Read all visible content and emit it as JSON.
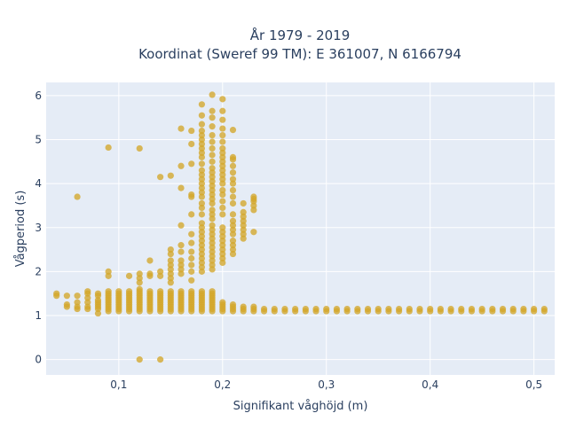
{
  "chart_data": {
    "type": "scatter",
    "title_line1": "År 1979 - 2019",
    "title_line2": "Koordinat (Sweref 99 TM): E 361007, N 6166794",
    "xlabel": "Signifikant våghöjd (m)",
    "ylabel": "Vågperiod (s)",
    "xlim": [
      0.03,
      0.52
    ],
    "ylim": [
      -0.35,
      6.3
    ],
    "x_ticks": [
      0.1,
      0.2,
      0.3,
      0.4,
      0.5
    ],
    "x_tick_labels": [
      "0,1",
      "0,2",
      "0,3",
      "0,4",
      "0,5"
    ],
    "y_ticks": [
      0,
      1,
      2,
      3,
      4,
      5,
      6
    ],
    "y_tick_labels": [
      "0",
      "1",
      "2",
      "3",
      "4",
      "5",
      "6"
    ],
    "grid": true,
    "legend": "none",
    "colors": {
      "plot_bg": "#e5ecf6",
      "grid": "#ffffff",
      "marker": "#d4a62a",
      "text": "#2a3f5f"
    },
    "points": [
      [
        0.04,
        1.45
      ],
      [
        0.04,
        1.5
      ],
      [
        0.05,
        1.2
      ],
      [
        0.05,
        1.25
      ],
      [
        0.05,
        1.45
      ],
      [
        0.06,
        1.15
      ],
      [
        0.06,
        1.2
      ],
      [
        0.06,
        1.3
      ],
      [
        0.06,
        1.45
      ],
      [
        0.06,
        3.7
      ],
      [
        0.07,
        1.15
      ],
      [
        0.07,
        1.2
      ],
      [
        0.07,
        1.3
      ],
      [
        0.07,
        1.4
      ],
      [
        0.07,
        1.5
      ],
      [
        0.07,
        1.55
      ],
      [
        0.08,
        1.05
      ],
      [
        0.08,
        1.15
      ],
      [
        0.08,
        1.2
      ],
      [
        0.08,
        1.25
      ],
      [
        0.08,
        1.3
      ],
      [
        0.08,
        1.35
      ],
      [
        0.08,
        1.45
      ],
      [
        0.08,
        1.5
      ],
      [
        0.09,
        1.1
      ],
      [
        0.09,
        1.15
      ],
      [
        0.09,
        1.2
      ],
      [
        0.09,
        1.25
      ],
      [
        0.09,
        1.3
      ],
      [
        0.09,
        1.35
      ],
      [
        0.09,
        1.4
      ],
      [
        0.09,
        1.45
      ],
      [
        0.09,
        1.5
      ],
      [
        0.09,
        1.55
      ],
      [
        0.09,
        1.9
      ],
      [
        0.09,
        2.0
      ],
      [
        0.09,
        4.82
      ],
      [
        0.1,
        1.1
      ],
      [
        0.1,
        1.15
      ],
      [
        0.1,
        1.2
      ],
      [
        0.1,
        1.25
      ],
      [
        0.1,
        1.3
      ],
      [
        0.1,
        1.35
      ],
      [
        0.1,
        1.4
      ],
      [
        0.1,
        1.45
      ],
      [
        0.1,
        1.5
      ],
      [
        0.1,
        1.55
      ],
      [
        0.11,
        1.1
      ],
      [
        0.11,
        1.15
      ],
      [
        0.11,
        1.2
      ],
      [
        0.11,
        1.25
      ],
      [
        0.11,
        1.3
      ],
      [
        0.11,
        1.35
      ],
      [
        0.11,
        1.4
      ],
      [
        0.11,
        1.45
      ],
      [
        0.11,
        1.5
      ],
      [
        0.11,
        1.55
      ],
      [
        0.11,
        1.9
      ],
      [
        0.12,
        0.0
      ],
      [
        0.12,
        1.1
      ],
      [
        0.12,
        1.15
      ],
      [
        0.12,
        1.2
      ],
      [
        0.12,
        1.25
      ],
      [
        0.12,
        1.3
      ],
      [
        0.12,
        1.35
      ],
      [
        0.12,
        1.4
      ],
      [
        0.12,
        1.45
      ],
      [
        0.12,
        1.5
      ],
      [
        0.12,
        1.55
      ],
      [
        0.12,
        1.6
      ],
      [
        0.12,
        1.75
      ],
      [
        0.12,
        1.85
      ],
      [
        0.12,
        1.95
      ],
      [
        0.12,
        4.8
      ],
      [
        0.13,
        1.1
      ],
      [
        0.13,
        1.15
      ],
      [
        0.13,
        1.2
      ],
      [
        0.13,
        1.25
      ],
      [
        0.13,
        1.3
      ],
      [
        0.13,
        1.35
      ],
      [
        0.13,
        1.4
      ],
      [
        0.13,
        1.45
      ],
      [
        0.13,
        1.5
      ],
      [
        0.13,
        1.55
      ],
      [
        0.13,
        1.9
      ],
      [
        0.13,
        1.95
      ],
      [
        0.13,
        2.25
      ],
      [
        0.14,
        0.0
      ],
      [
        0.14,
        1.1
      ],
      [
        0.14,
        1.15
      ],
      [
        0.14,
        1.2
      ],
      [
        0.14,
        1.25
      ],
      [
        0.14,
        1.3
      ],
      [
        0.14,
        1.35
      ],
      [
        0.14,
        1.4
      ],
      [
        0.14,
        1.45
      ],
      [
        0.14,
        1.5
      ],
      [
        0.14,
        1.55
      ],
      [
        0.14,
        1.9
      ],
      [
        0.14,
        2.0
      ],
      [
        0.14,
        4.15
      ],
      [
        0.15,
        1.1
      ],
      [
        0.15,
        1.15
      ],
      [
        0.15,
        1.2
      ],
      [
        0.15,
        1.25
      ],
      [
        0.15,
        1.3
      ],
      [
        0.15,
        1.35
      ],
      [
        0.15,
        1.4
      ],
      [
        0.15,
        1.45
      ],
      [
        0.15,
        1.5
      ],
      [
        0.15,
        1.55
      ],
      [
        0.15,
        1.75
      ],
      [
        0.15,
        1.85
      ],
      [
        0.15,
        1.95
      ],
      [
        0.15,
        2.05
      ],
      [
        0.15,
        2.15
      ],
      [
        0.15,
        2.25
      ],
      [
        0.15,
        2.4
      ],
      [
        0.15,
        2.5
      ],
      [
        0.15,
        4.18
      ],
      [
        0.16,
        1.1
      ],
      [
        0.16,
        1.15
      ],
      [
        0.16,
        1.2
      ],
      [
        0.16,
        1.25
      ],
      [
        0.16,
        1.3
      ],
      [
        0.16,
        1.35
      ],
      [
        0.16,
        1.4
      ],
      [
        0.16,
        1.45
      ],
      [
        0.16,
        1.5
      ],
      [
        0.16,
        1.55
      ],
      [
        0.16,
        1.95
      ],
      [
        0.16,
        2.05
      ],
      [
        0.16,
        2.15
      ],
      [
        0.16,
        2.25
      ],
      [
        0.16,
        2.45
      ],
      [
        0.16,
        2.6
      ],
      [
        0.16,
        3.05
      ],
      [
        0.16,
        3.9
      ],
      [
        0.16,
        4.4
      ],
      [
        0.16,
        5.25
      ],
      [
        0.17,
        1.1
      ],
      [
        0.17,
        1.15
      ],
      [
        0.17,
        1.2
      ],
      [
        0.17,
        1.25
      ],
      [
        0.17,
        1.3
      ],
      [
        0.17,
        1.35
      ],
      [
        0.17,
        1.4
      ],
      [
        0.17,
        1.45
      ],
      [
        0.17,
        1.5
      ],
      [
        0.17,
        1.55
      ],
      [
        0.17,
        1.8
      ],
      [
        0.17,
        2.0
      ],
      [
        0.17,
        2.15
      ],
      [
        0.17,
        2.3
      ],
      [
        0.17,
        2.45
      ],
      [
        0.17,
        2.65
      ],
      [
        0.17,
        2.85
      ],
      [
        0.17,
        3.3
      ],
      [
        0.17,
        3.7
      ],
      [
        0.17,
        3.75
      ],
      [
        0.17,
        4.45
      ],
      [
        0.17,
        4.9
      ],
      [
        0.17,
        5.2
      ],
      [
        0.18,
        1.1
      ],
      [
        0.18,
        1.15
      ],
      [
        0.18,
        1.2
      ],
      [
        0.18,
        1.25
      ],
      [
        0.18,
        1.3
      ],
      [
        0.18,
        1.35
      ],
      [
        0.18,
        1.4
      ],
      [
        0.18,
        1.45
      ],
      [
        0.18,
        1.5
      ],
      [
        0.18,
        1.55
      ],
      [
        0.18,
        2.0
      ],
      [
        0.18,
        2.1
      ],
      [
        0.18,
        2.2
      ],
      [
        0.18,
        2.3
      ],
      [
        0.18,
        2.4
      ],
      [
        0.18,
        2.5
      ],
      [
        0.18,
        2.6
      ],
      [
        0.18,
        2.7
      ],
      [
        0.18,
        2.8
      ],
      [
        0.18,
        2.9
      ],
      [
        0.18,
        3.0
      ],
      [
        0.18,
        3.1
      ],
      [
        0.18,
        3.3
      ],
      [
        0.18,
        3.45
      ],
      [
        0.18,
        3.55
      ],
      [
        0.18,
        3.7
      ],
      [
        0.18,
        3.8
      ],
      [
        0.18,
        3.9
      ],
      [
        0.18,
        4.0
      ],
      [
        0.18,
        4.1
      ],
      [
        0.18,
        4.2
      ],
      [
        0.18,
        4.3
      ],
      [
        0.18,
        4.45
      ],
      [
        0.18,
        4.6
      ],
      [
        0.18,
        4.7
      ],
      [
        0.18,
        4.8
      ],
      [
        0.18,
        4.9
      ],
      [
        0.18,
        5.0
      ],
      [
        0.18,
        5.1
      ],
      [
        0.18,
        5.2
      ],
      [
        0.18,
        5.35
      ],
      [
        0.18,
        5.55
      ],
      [
        0.18,
        5.8
      ],
      [
        0.19,
        1.1
      ],
      [
        0.19,
        1.15
      ],
      [
        0.19,
        1.2
      ],
      [
        0.19,
        1.25
      ],
      [
        0.19,
        1.3
      ],
      [
        0.19,
        1.35
      ],
      [
        0.19,
        1.4
      ],
      [
        0.19,
        1.45
      ],
      [
        0.19,
        1.5
      ],
      [
        0.19,
        1.55
      ],
      [
        0.19,
        2.05
      ],
      [
        0.19,
        2.15
      ],
      [
        0.19,
        2.25
      ],
      [
        0.19,
        2.35
      ],
      [
        0.19,
        2.45
      ],
      [
        0.19,
        2.55
      ],
      [
        0.19,
        2.65
      ],
      [
        0.19,
        2.75
      ],
      [
        0.19,
        2.85
      ],
      [
        0.19,
        2.95
      ],
      [
        0.19,
        3.05
      ],
      [
        0.19,
        3.2
      ],
      [
        0.19,
        3.3
      ],
      [
        0.19,
        3.4
      ],
      [
        0.19,
        3.55
      ],
      [
        0.19,
        3.65
      ],
      [
        0.19,
        3.75
      ],
      [
        0.19,
        3.85
      ],
      [
        0.19,
        3.95
      ],
      [
        0.19,
        4.05
      ],
      [
        0.19,
        4.15
      ],
      [
        0.19,
        4.25
      ],
      [
        0.19,
        4.35
      ],
      [
        0.19,
        4.5
      ],
      [
        0.19,
        4.65
      ],
      [
        0.19,
        4.8
      ],
      [
        0.19,
        4.95
      ],
      [
        0.19,
        5.1
      ],
      [
        0.19,
        5.3
      ],
      [
        0.19,
        5.5
      ],
      [
        0.19,
        5.65
      ],
      [
        0.19,
        6.02
      ],
      [
        0.2,
        1.1
      ],
      [
        0.2,
        1.15
      ],
      [
        0.2,
        1.2
      ],
      [
        0.2,
        1.25
      ],
      [
        0.2,
        1.3
      ],
      [
        0.2,
        2.2
      ],
      [
        0.2,
        2.3
      ],
      [
        0.2,
        2.4
      ],
      [
        0.2,
        2.5
      ],
      [
        0.2,
        2.6
      ],
      [
        0.2,
        2.7
      ],
      [
        0.2,
        2.8
      ],
      [
        0.2,
        2.9
      ],
      [
        0.2,
        3.0
      ],
      [
        0.2,
        3.3
      ],
      [
        0.2,
        3.45
      ],
      [
        0.2,
        3.6
      ],
      [
        0.2,
        3.75
      ],
      [
        0.2,
        3.85
      ],
      [
        0.2,
        4.0
      ],
      [
        0.2,
        4.1
      ],
      [
        0.2,
        4.2
      ],
      [
        0.2,
        4.3
      ],
      [
        0.2,
        4.4
      ],
      [
        0.2,
        4.5
      ],
      [
        0.2,
        4.6
      ],
      [
        0.2,
        4.7
      ],
      [
        0.2,
        4.8
      ],
      [
        0.2,
        4.95
      ],
      [
        0.2,
        5.1
      ],
      [
        0.2,
        5.25
      ],
      [
        0.2,
        5.45
      ],
      [
        0.2,
        5.65
      ],
      [
        0.2,
        5.92
      ],
      [
        0.21,
        1.1
      ],
      [
        0.21,
        1.15
      ],
      [
        0.21,
        1.2
      ],
      [
        0.21,
        1.25
      ],
      [
        0.21,
        2.4
      ],
      [
        0.21,
        2.5
      ],
      [
        0.21,
        2.6
      ],
      [
        0.21,
        2.7
      ],
      [
        0.21,
        2.85
      ],
      [
        0.21,
        2.95
      ],
      [
        0.21,
        3.05
      ],
      [
        0.21,
        3.15
      ],
      [
        0.21,
        3.3
      ],
      [
        0.21,
        3.55
      ],
      [
        0.21,
        3.7
      ],
      [
        0.21,
        3.85
      ],
      [
        0.21,
        4.0
      ],
      [
        0.21,
        4.1
      ],
      [
        0.21,
        4.25
      ],
      [
        0.21,
        4.4
      ],
      [
        0.21,
        4.55
      ],
      [
        0.21,
        4.6
      ],
      [
        0.21,
        5.22
      ],
      [
        0.22,
        1.1
      ],
      [
        0.22,
        1.15
      ],
      [
        0.22,
        1.2
      ],
      [
        0.22,
        2.75
      ],
      [
        0.22,
        2.85
      ],
      [
        0.22,
        2.95
      ],
      [
        0.22,
        3.05
      ],
      [
        0.22,
        3.15
      ],
      [
        0.22,
        3.25
      ],
      [
        0.22,
        3.35
      ],
      [
        0.22,
        3.55
      ],
      [
        0.23,
        1.1
      ],
      [
        0.23,
        1.15
      ],
      [
        0.23,
        1.2
      ],
      [
        0.23,
        2.9
      ],
      [
        0.23,
        3.4
      ],
      [
        0.23,
        3.5
      ],
      [
        0.23,
        3.6
      ],
      [
        0.23,
        3.65
      ],
      [
        0.23,
        3.7
      ],
      [
        0.24,
        1.1
      ],
      [
        0.24,
        1.15
      ],
      [
        0.25,
        1.1
      ],
      [
        0.25,
        1.15
      ],
      [
        0.26,
        1.1
      ],
      [
        0.26,
        1.15
      ],
      [
        0.27,
        1.1
      ],
      [
        0.27,
        1.15
      ],
      [
        0.28,
        1.1
      ],
      [
        0.28,
        1.15
      ],
      [
        0.29,
        1.1
      ],
      [
        0.29,
        1.15
      ],
      [
        0.3,
        1.1
      ],
      [
        0.3,
        1.15
      ],
      [
        0.31,
        1.1
      ],
      [
        0.31,
        1.15
      ],
      [
        0.32,
        1.1
      ],
      [
        0.32,
        1.15
      ],
      [
        0.33,
        1.1
      ],
      [
        0.33,
        1.15
      ],
      [
        0.34,
        1.1
      ],
      [
        0.34,
        1.15
      ],
      [
        0.35,
        1.1
      ],
      [
        0.35,
        1.15
      ],
      [
        0.36,
        1.1
      ],
      [
        0.36,
        1.15
      ],
      [
        0.37,
        1.1
      ],
      [
        0.37,
        1.15
      ],
      [
        0.38,
        1.1
      ],
      [
        0.38,
        1.15
      ],
      [
        0.39,
        1.1
      ],
      [
        0.39,
        1.15
      ],
      [
        0.4,
        1.1
      ],
      [
        0.4,
        1.15
      ],
      [
        0.41,
        1.1
      ],
      [
        0.41,
        1.15
      ],
      [
        0.42,
        1.1
      ],
      [
        0.42,
        1.15
      ],
      [
        0.43,
        1.1
      ],
      [
        0.43,
        1.15
      ],
      [
        0.44,
        1.1
      ],
      [
        0.44,
        1.15
      ],
      [
        0.45,
        1.1
      ],
      [
        0.45,
        1.15
      ],
      [
        0.46,
        1.1
      ],
      [
        0.46,
        1.15
      ],
      [
        0.47,
        1.1
      ],
      [
        0.47,
        1.15
      ],
      [
        0.48,
        1.1
      ],
      [
        0.48,
        1.15
      ],
      [
        0.49,
        1.1
      ],
      [
        0.49,
        1.15
      ],
      [
        0.5,
        1.1
      ],
      [
        0.5,
        1.15
      ],
      [
        0.51,
        1.1
      ],
      [
        0.51,
        1.15
      ]
    ]
  }
}
